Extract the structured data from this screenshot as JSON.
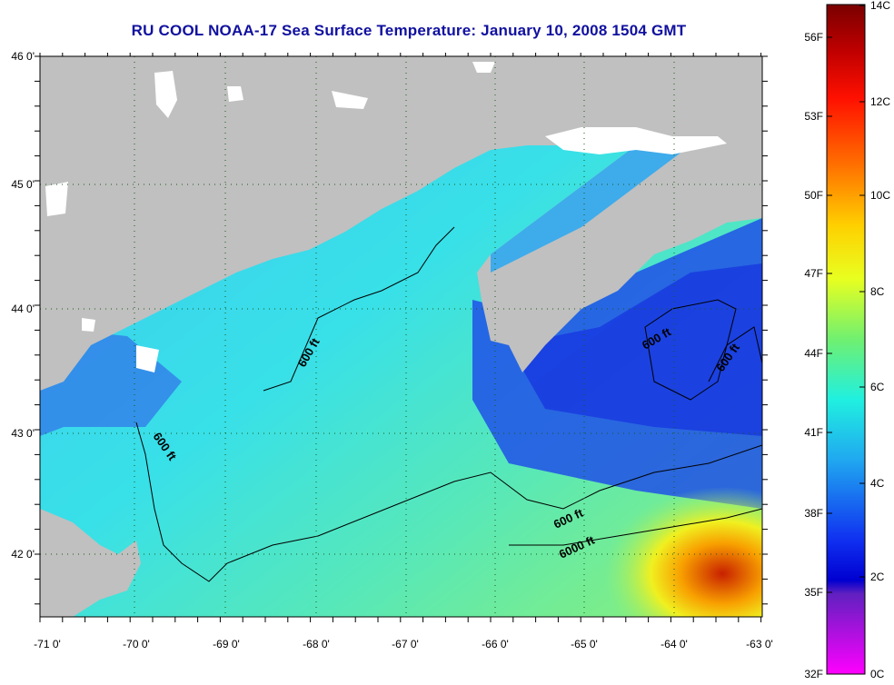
{
  "title": "RU COOL  NOAA-17  Sea Surface Temperature:  January 10, 2008 1504 GMT",
  "map": {
    "lon_range": [
      -71,
      -63
    ],
    "lat_range": [
      41.5,
      46
    ],
    "lon_ticks": [
      "-71 0'",
      "-70 0'",
      "-69 0'",
      "-68 0'",
      "-67 0'",
      "-66 0'",
      "-65 0'",
      "-64 0'",
      "-63 0'"
    ],
    "lat_ticks": [
      "46 0'",
      "45 0'",
      "44 0'",
      "43 0'",
      "42 0'"
    ],
    "contour_labels": [
      {
        "text": "600 ft"
      },
      {
        "text": "600 ft"
      },
      {
        "text": "600 ft"
      },
      {
        "text": "600 ft"
      },
      {
        "text": "600 ft"
      },
      {
        "text": "6000 ft"
      }
    ],
    "colors": {
      "land": "#c0c0c0",
      "cloud": "#ffffff",
      "cold": "#1838e0",
      "mid": "#30d8f0",
      "warm": "#f8e020",
      "hot": "#c02000"
    }
  },
  "colorbar": {
    "celsius": [
      "14C",
      "12C",
      "10C",
      "8C",
      "6C",
      "4C",
      "2C",
      "0C"
    ],
    "fahrenheit": [
      "56F",
      "53F",
      "50F",
      "47F",
      "44F",
      "41F",
      "38F",
      "35F",
      "32F"
    ]
  }
}
